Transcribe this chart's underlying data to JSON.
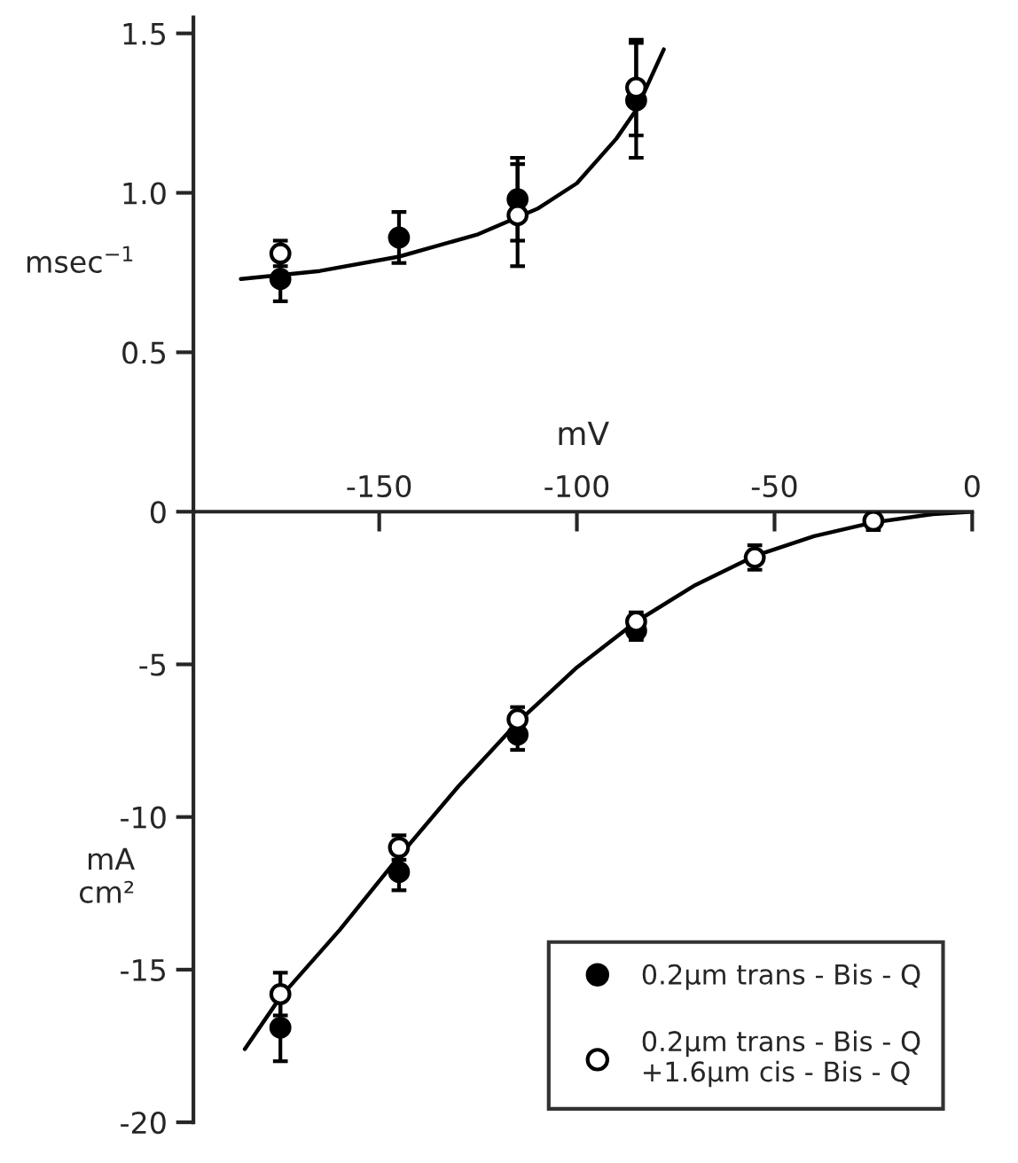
{
  "chart_data": [
    {
      "type": "scatter",
      "ylabel": "msec$^{−1}$",
      "x": [
        -175,
        -145,
        -115,
        -85
      ],
      "xlim": [
        -197,
        0
      ],
      "ylim": [
        0,
        1.55
      ],
      "yticks": [
        0.5,
        {
          "value": 1.0,
          "label": "1.0"
        },
        1.5
      ],
      "tick_labels": "y",
      "grid": false,
      "legend": false,
      "marker": "circle",
      "series": [
        {
          "type": "line",
          "color": "#000000",
          "x": [
            -185,
            -165,
            -145,
            -125,
            -110,
            -100,
            -90,
            -85,
            -78
          ],
          "values": [
            0.73,
            0.755,
            0.8,
            0.87,
            0.95,
            1.03,
            1.17,
            1.26,
            1.45
          ],
          "marker": "none"
        },
        {
          "color": "#000000",
          "values": [
            0.73,
            0.86,
            0.98,
            1.29
          ],
          "errors": [
            0.07,
            0.08,
            0.13,
            0.18
          ]
        },
        {
          "color": "#ffffff",
          "values": [
            0.81,
            null,
            0.93,
            1.33
          ],
          "errors": [
            0.04,
            null,
            0.16,
            0.15
          ]
        }
      ]
    },
    {
      "type": "scatter",
      "xlabel": "mV",
      "ylabel": "mA\ncm²",
      "x": [
        -175,
        -145,
        -115,
        -85,
        -55,
        -25
      ],
      "xlim": [
        -197,
        0
      ],
      "xticks": [
        -150,
        -100,
        -50,
        0
      ],
      "ylim": [
        -20,
        0
      ],
      "yticks": [
        0,
        -5,
        -10,
        -15,
        -20
      ],
      "grid": false,
      "legend": "lower right",
      "marker": "circle",
      "series": [
        {
          "type": "line",
          "color": "#000000",
          "x": [
            -184,
            -175,
            -160,
            -145,
            -130,
            -115,
            -100,
            -85,
            -70,
            -55,
            -40,
            -25,
            -10,
            0
          ],
          "values": [
            -17.6,
            -15.9,
            -13.7,
            -11.3,
            -9.0,
            -6.9,
            -5.1,
            -3.6,
            -2.4,
            -1.45,
            -0.8,
            -0.35,
            -0.08,
            0
          ],
          "marker": "none"
        },
        {
          "name": "0.2μm trans - Bis - Q",
          "color": "#000000",
          "values": [
            -16.9,
            -11.8,
            -7.3,
            -3.9,
            null,
            null
          ],
          "errors": [
            1.1,
            0.6,
            0.5,
            0.3,
            null,
            null
          ]
        },
        {
          "name": "0.2μm trans - Bis - Q\n+1.6μm cis - Bis - Q",
          "color": "#ffffff",
          "values": [
            -15.8,
            -11.0,
            -6.8,
            -3.6,
            -1.5,
            -0.3
          ],
          "errors": [
            0.7,
            0.4,
            0.4,
            0.3,
            0.4,
            0.3
          ]
        }
      ]
    }
  ]
}
